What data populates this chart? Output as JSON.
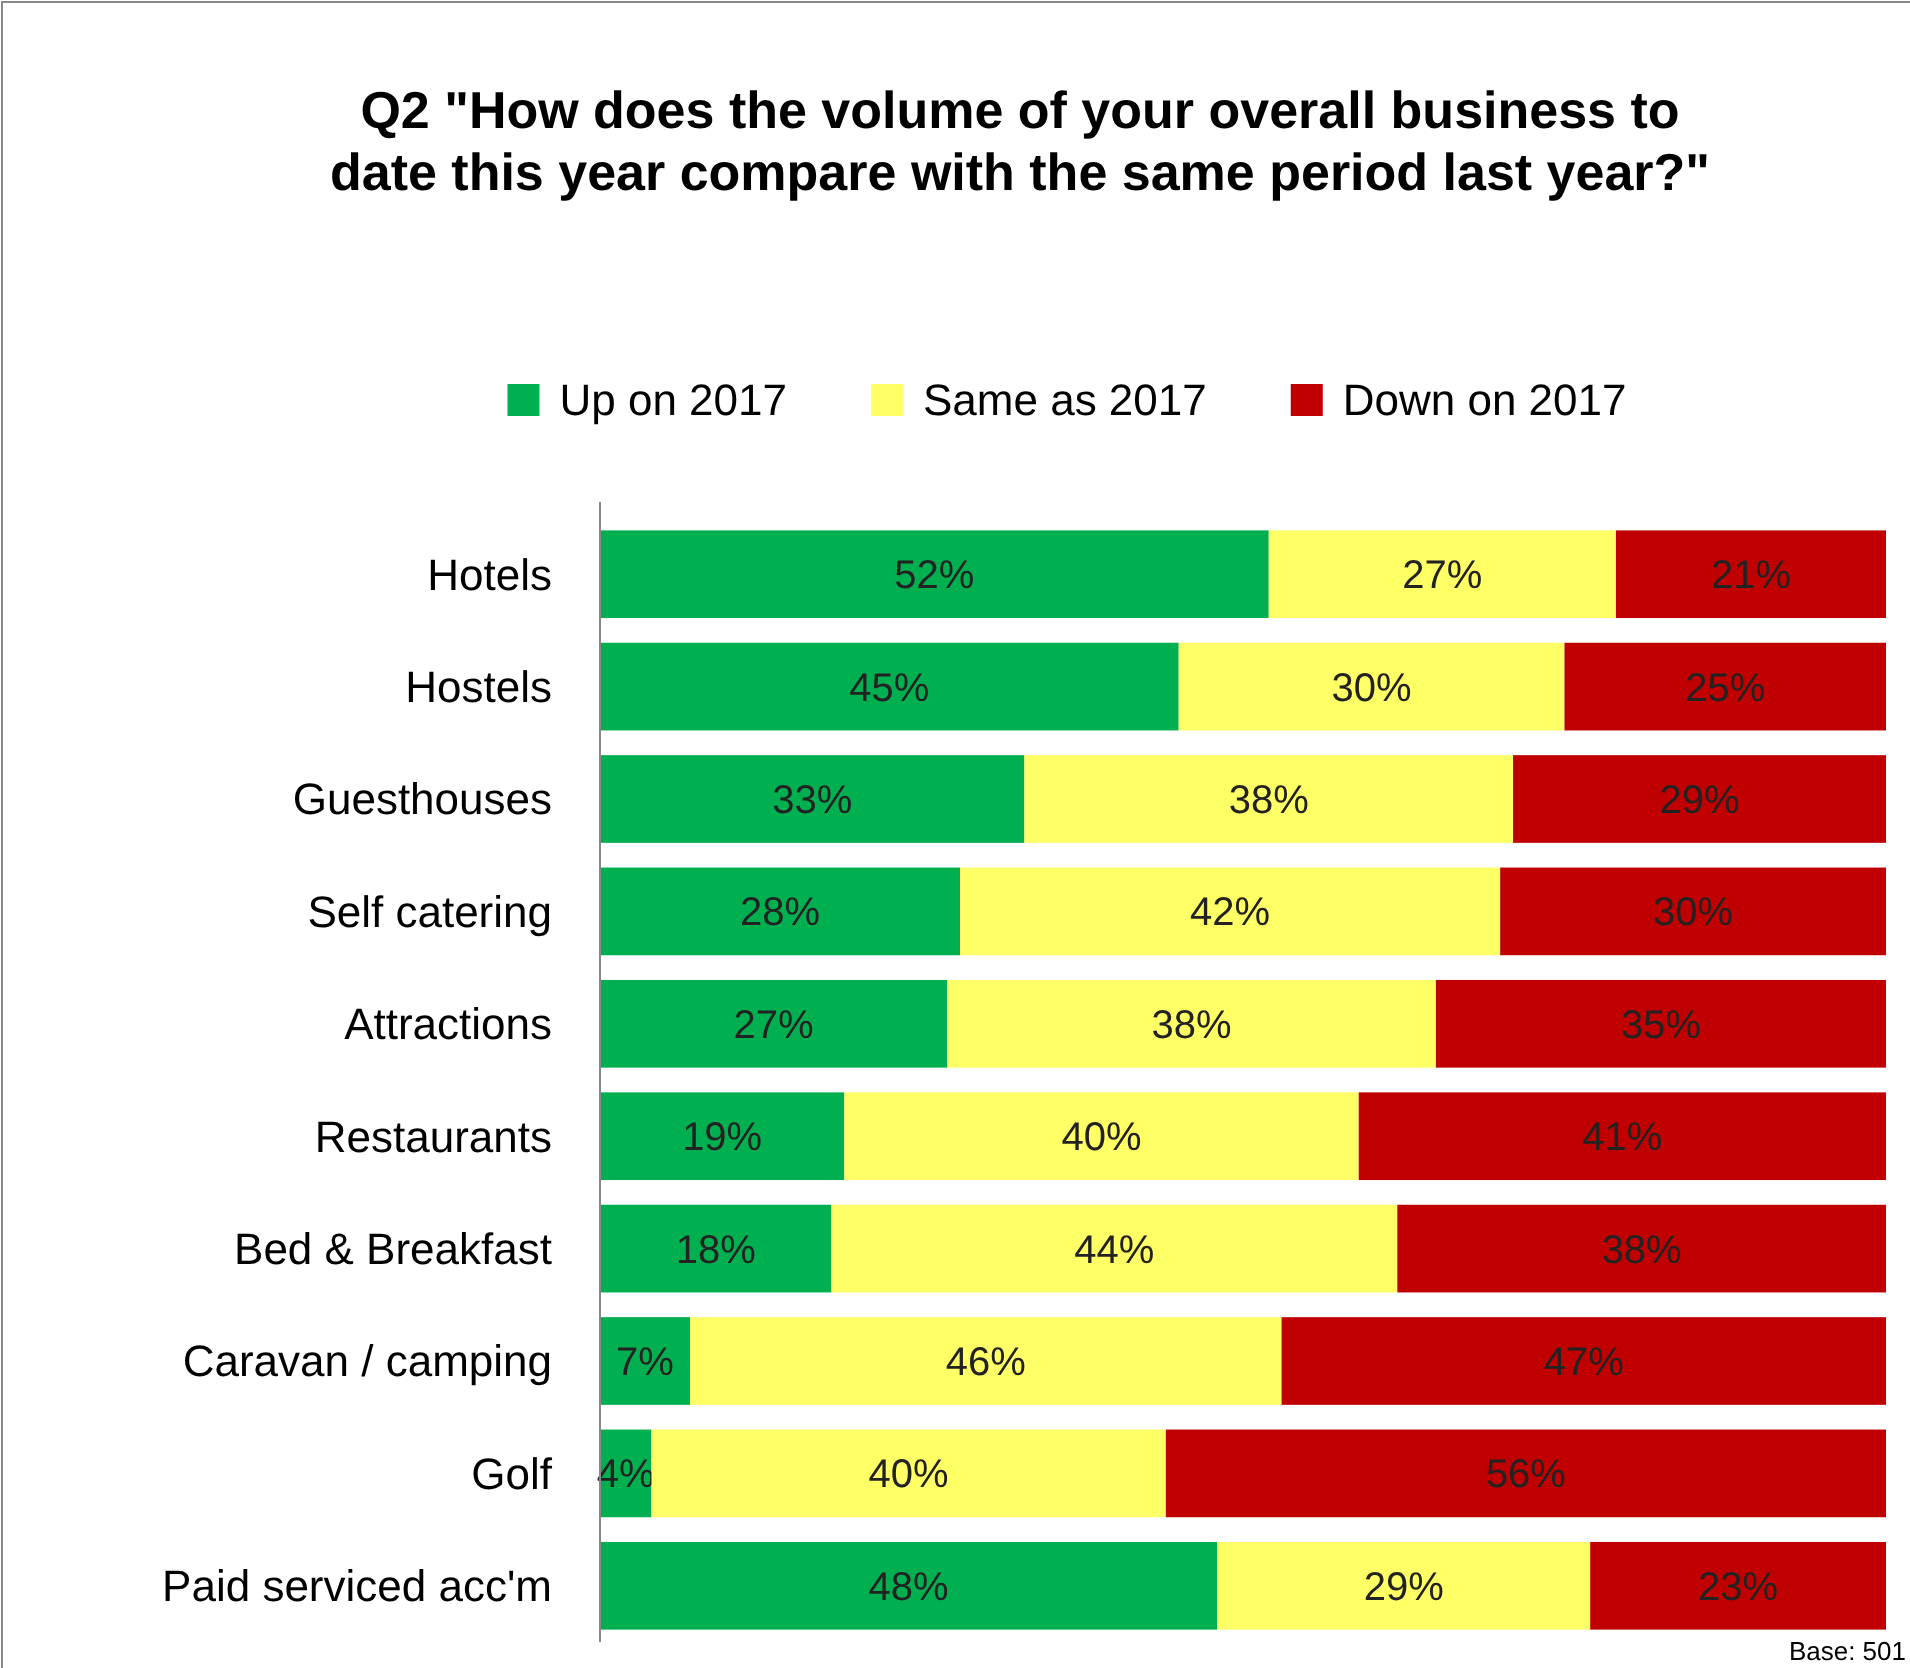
{
  "chart_data": {
    "type": "bar",
    "orientation": "horizontal",
    "stacked": true,
    "title": "Q2 \"How does the volume of your overall business to date this year compare with the same period last year?\"",
    "categories": [
      "Hotels",
      "Hostels",
      "Guesthouses",
      "Self catering",
      "Attractions",
      "Restaurants",
      "Bed & Breakfast",
      "Caravan / camping",
      "Golf",
      "Paid serviced acc'm"
    ],
    "series": [
      {
        "name": "Up on 2017",
        "color": "#00b050",
        "values": [
          52,
          45,
          33,
          28,
          27,
          19,
          18,
          7,
          4,
          48
        ],
        "value_labels": [
          "52%",
          "45%",
          "33%",
          "28%",
          "27%",
          "19%",
          "18%",
          "7%",
          "4%",
          "48%"
        ]
      },
      {
        "name": "Same as 2017",
        "color": "#ffff66",
        "values": [
          27,
          30,
          38,
          42,
          38,
          40,
          44,
          46,
          40,
          29
        ],
        "value_labels": [
          "27%",
          "30%",
          "38%",
          "42%",
          "38%",
          "40%",
          "44%",
          "46%",
          "40%",
          "29%"
        ]
      },
      {
        "name": "Down on 2017",
        "color": "#c00000",
        "values": [
          21,
          25,
          29,
          30,
          35,
          41,
          38,
          47,
          56,
          23
        ],
        "value_labels": [
          "21%",
          "25%",
          "29%",
          "30%",
          "35%",
          "41%",
          "38%",
          "47%",
          "56%",
          "23%"
        ]
      }
    ],
    "xlim": [
      0,
      100
    ],
    "tick_labels": "y",
    "legend": "top",
    "annotations": [
      "Base: 501"
    ]
  }
}
